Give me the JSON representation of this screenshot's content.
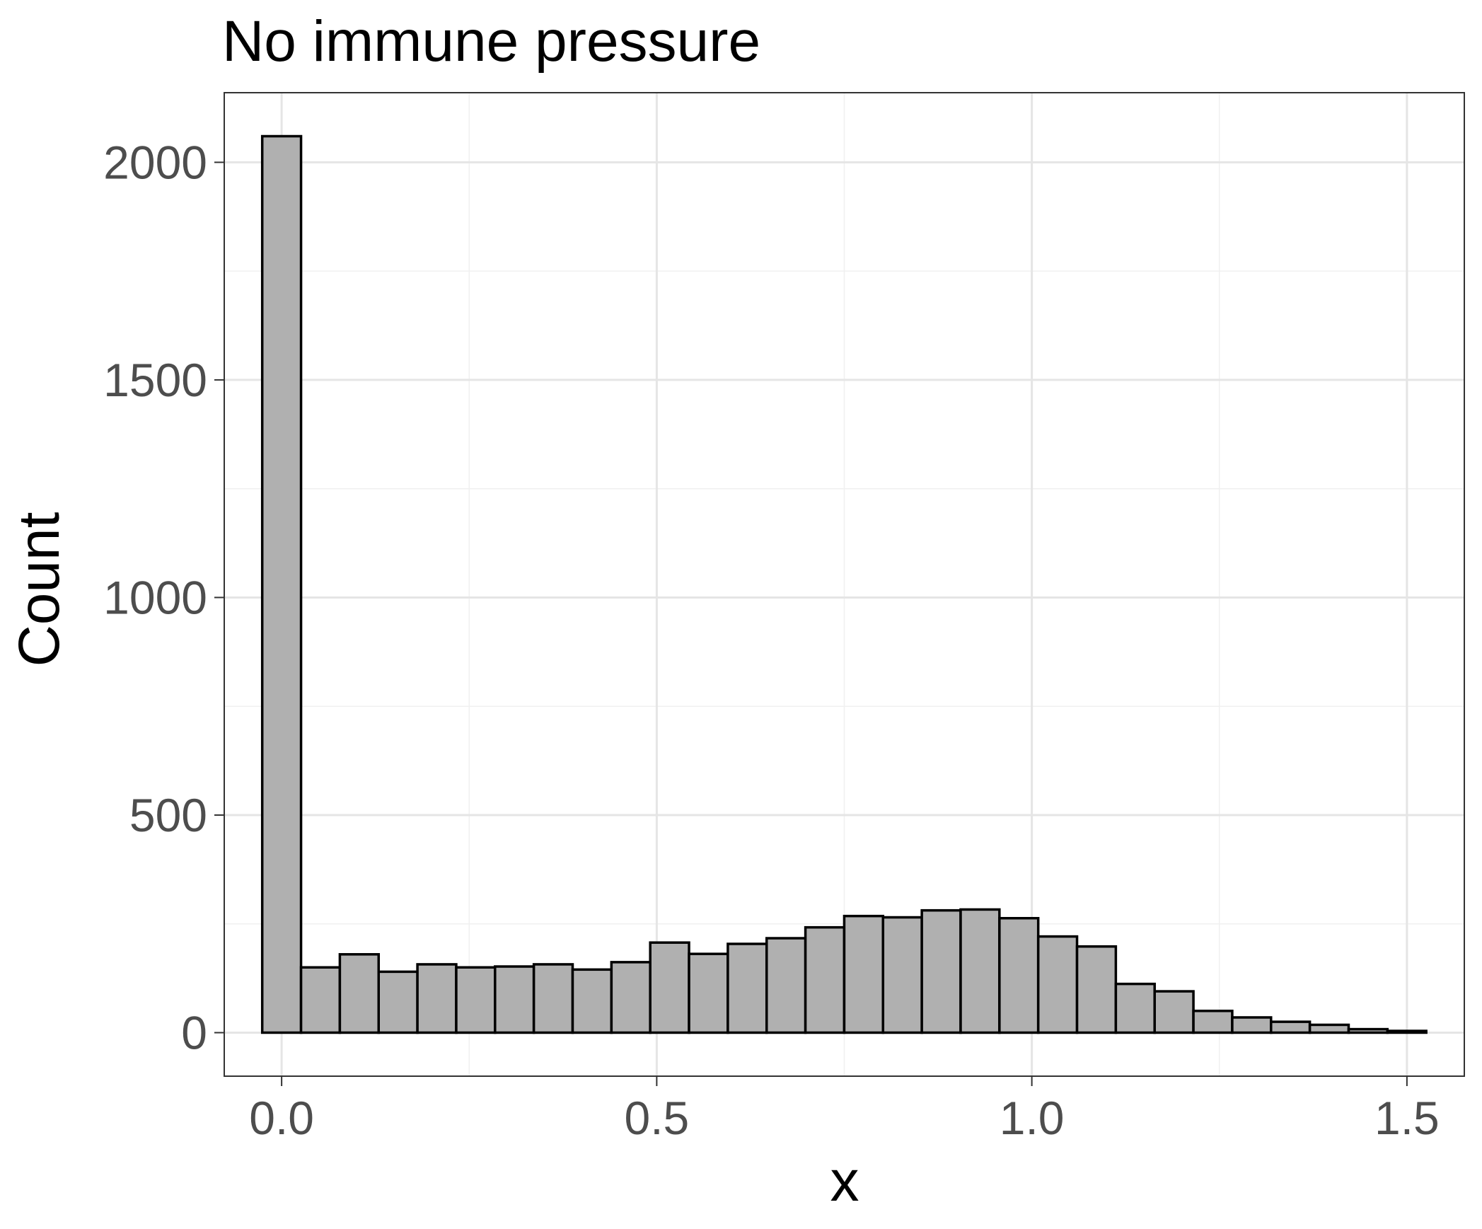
{
  "chart_data": {
    "type": "bar",
    "title": "No immune pressure",
    "xlabel": "x",
    "ylabel": "Count",
    "xlim": [
      -0.0765,
      1.5765
    ],
    "ylim": [
      -100,
      2160
    ],
    "x_ticks": [
      0.0,
      0.5,
      1.0,
      1.5
    ],
    "x_tick_labels": [
      "0.0",
      "0.5",
      "1.0",
      "1.5"
    ],
    "y_ticks": [
      0,
      500,
      1000,
      1500,
      2000
    ],
    "y_tick_labels": [
      "0",
      "500",
      "1000",
      "1500",
      "2000"
    ],
    "x_minor_gridlines": [
      -0.25,
      0.25,
      0.75,
      1.25
    ],
    "y_minor_gridlines": [
      250,
      750,
      1250,
      1750
    ],
    "grid": true,
    "legend": "none",
    "bin_width": 0.05172,
    "bin_start": -0.02586,
    "bin_centers": [
      0.0,
      0.0517,
      0.1034,
      0.1552,
      0.2069,
      0.2586,
      0.3103,
      0.3621,
      0.4138,
      0.4655,
      0.5172,
      0.569,
      0.6207,
      0.6724,
      0.7241,
      0.7759,
      0.8276,
      0.8793,
      0.931,
      0.9828,
      1.0345,
      1.0862,
      1.1379,
      1.1897,
      1.2414,
      1.2931,
      1.3448,
      1.3966,
      1.4483,
      1.5
    ],
    "values": [
      2060,
      150,
      180,
      140,
      157,
      150,
      152,
      157,
      145,
      162,
      207,
      181,
      204,
      217,
      242,
      268,
      265,
      281,
      283,
      263,
      221,
      198,
      112,
      95,
      50,
      35,
      25,
      18,
      8,
      4
    ],
    "colors": {
      "bar_fill": "#b0b0b0",
      "bar_stroke": "#000000",
      "grid_major": "#e5e5e5",
      "grid_minor": "#f0f0f0",
      "panel_border": "#333333"
    }
  }
}
